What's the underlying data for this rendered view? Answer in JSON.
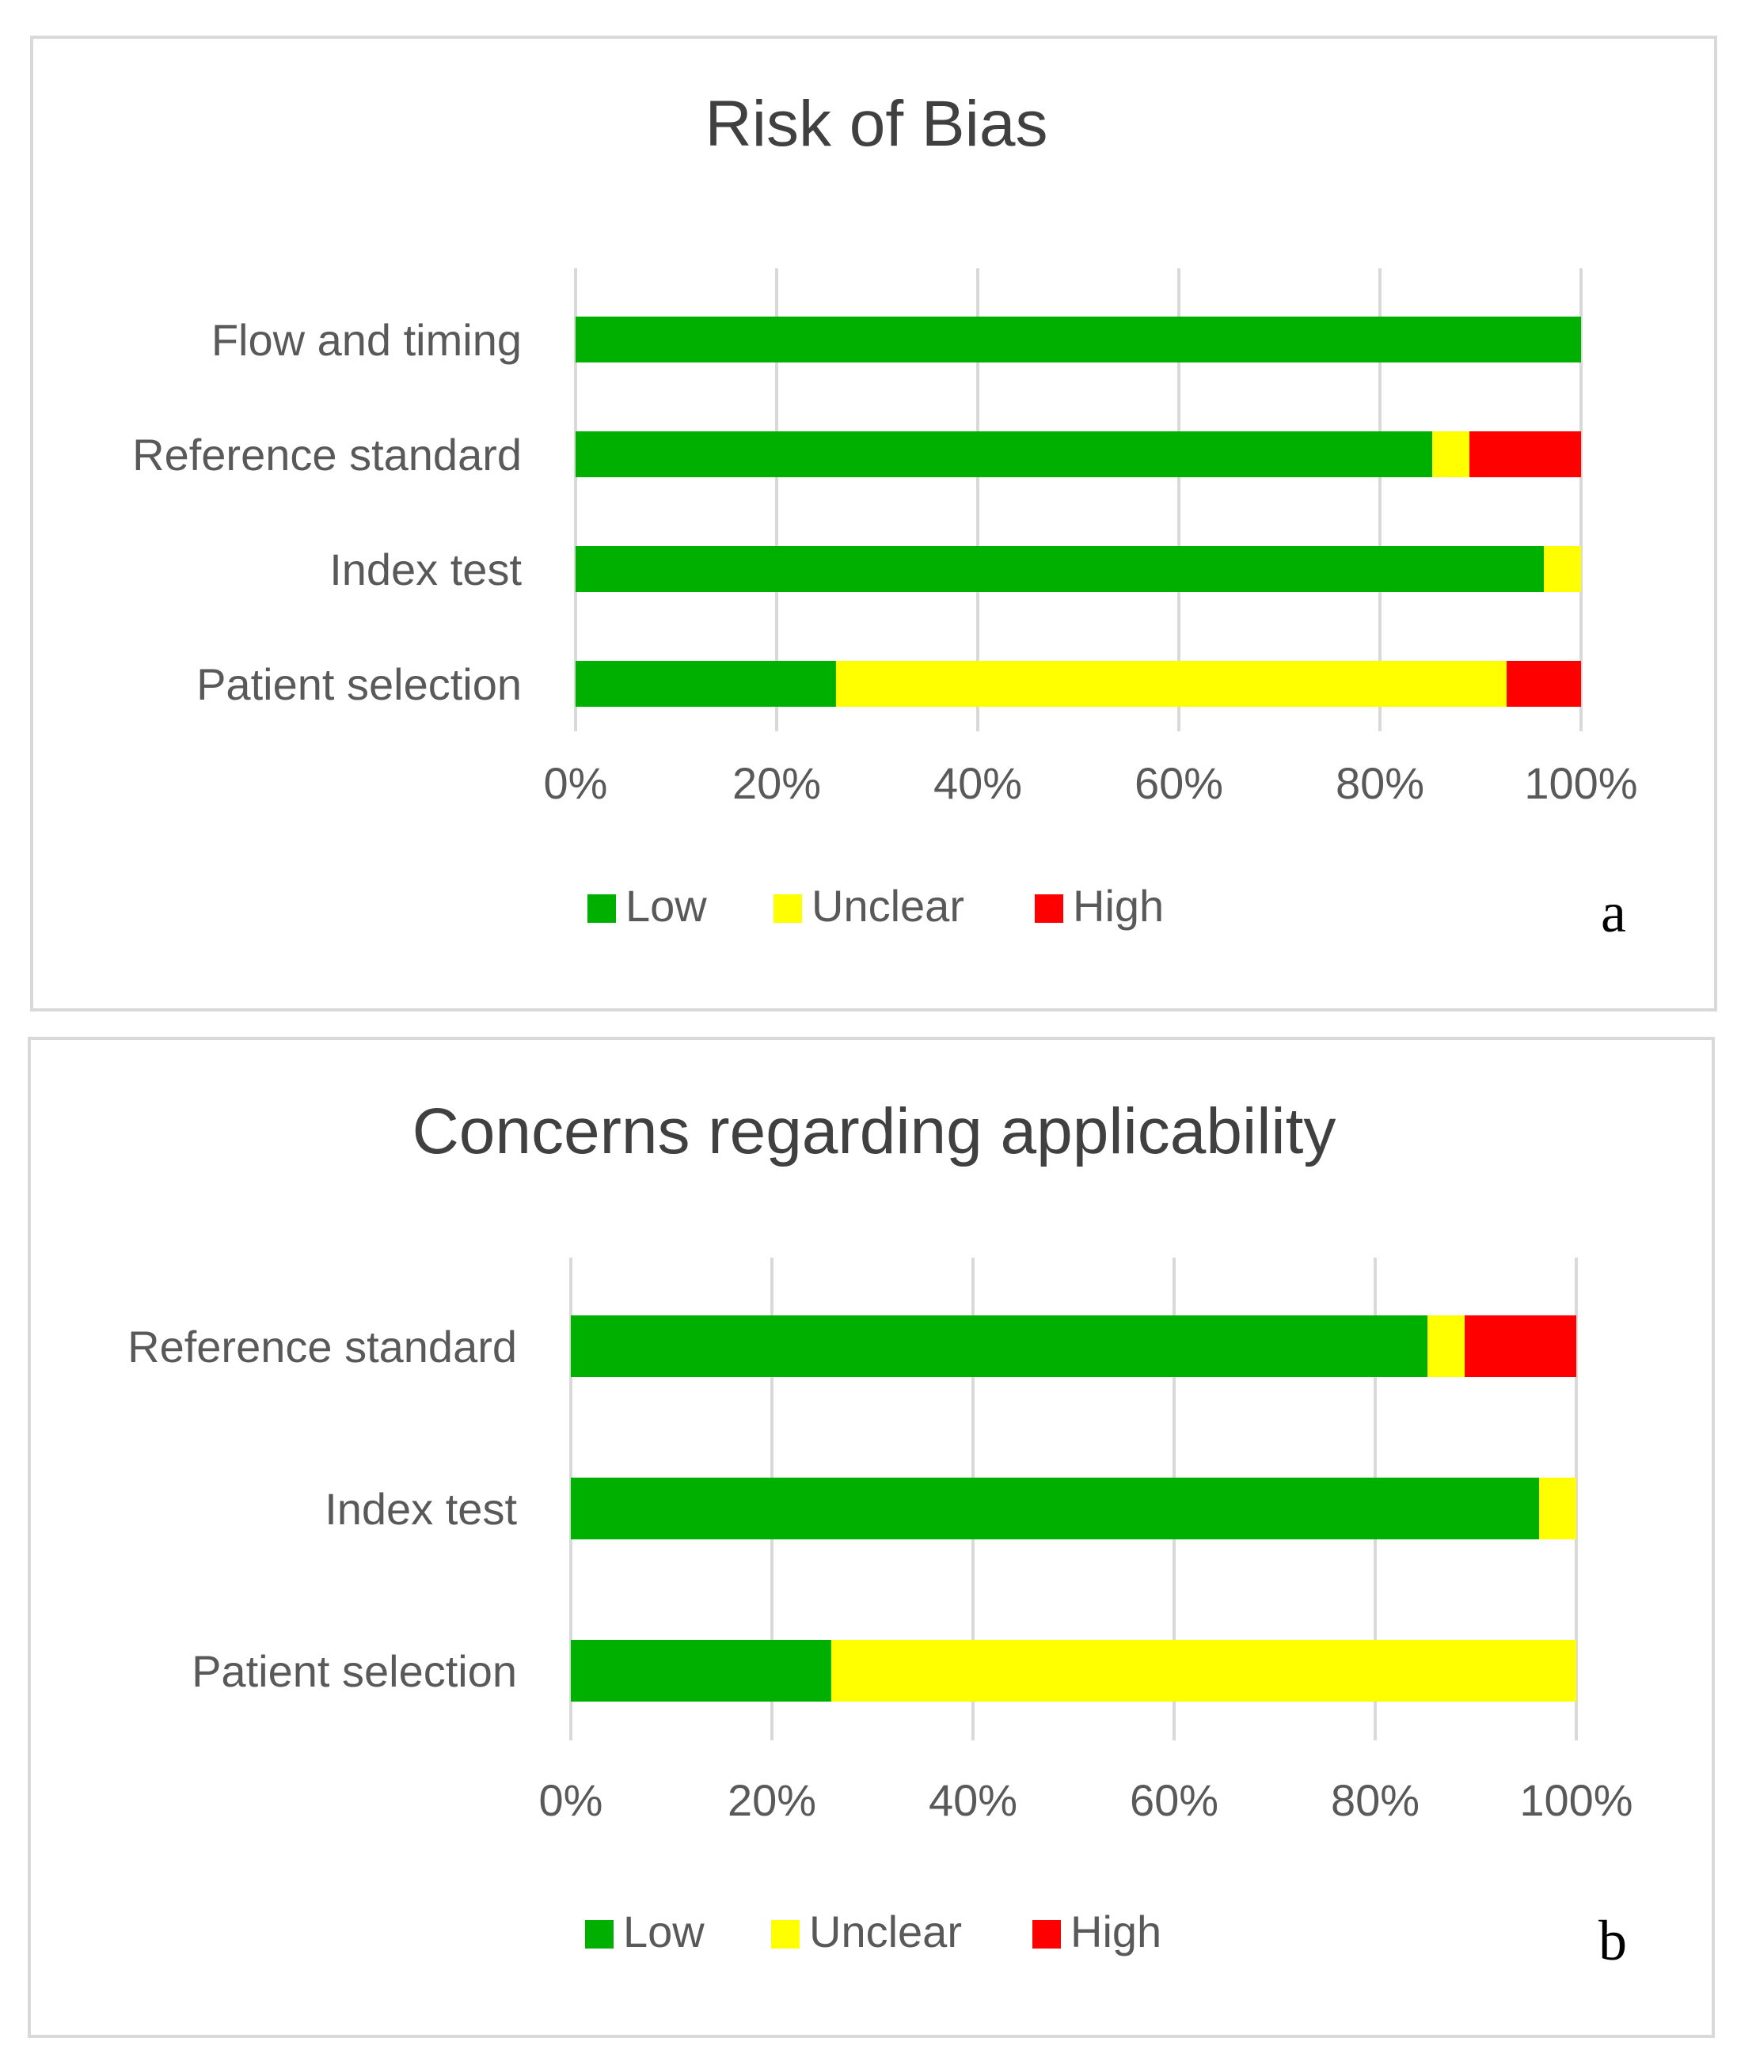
{
  "colors": {
    "low": "#00b000",
    "unclear": "#ffff00",
    "high": "#ff0000"
  },
  "chart_data": [
    {
      "type": "bar",
      "orientation": "horizontal",
      "stacked": true,
      "title": "Risk of Bias",
      "panel_label": "a",
      "categories": [
        "Flow and timing",
        "Reference standard",
        "Index test",
        "Patient selection"
      ],
      "series": [
        {
          "name": "Low",
          "color": "#00b000",
          "values": [
            100,
            85.2,
            96.3,
            25.9
          ]
        },
        {
          "name": "Unclear",
          "color": "#ffff00",
          "values": [
            0,
            3.7,
            3.7,
            66.7
          ]
        },
        {
          "name": "High",
          "color": "#ff0000",
          "values": [
            0,
            11.1,
            0,
            7.4
          ]
        }
      ],
      "xlim": [
        0,
        100
      ],
      "xticks": [
        "0%",
        "20%",
        "40%",
        "60%",
        "80%",
        "100%"
      ],
      "legend": [
        "Low",
        "Unclear",
        "High"
      ],
      "legend_position": "bottom",
      "grid": true
    },
    {
      "type": "bar",
      "orientation": "horizontal",
      "stacked": true,
      "title": "Concerns  regarding applicability",
      "panel_label": "b",
      "categories": [
        "Reference standard",
        "Index test",
        "Patient selection"
      ],
      "series": [
        {
          "name": "Low",
          "color": "#00b000",
          "values": [
            85.2,
            96.3,
            25.9
          ]
        },
        {
          "name": "Unclear",
          "color": "#ffff00",
          "values": [
            3.7,
            3.7,
            74.1
          ]
        },
        {
          "name": "High",
          "color": "#ff0000",
          "values": [
            11.1,
            0,
            0
          ]
        }
      ],
      "xlim": [
        0,
        100
      ],
      "xticks": [
        "0%",
        "20%",
        "40%",
        "60%",
        "80%",
        "100%"
      ],
      "legend": [
        "Low",
        "Unclear",
        "High"
      ],
      "legend_position": "bottom",
      "grid": true
    }
  ]
}
